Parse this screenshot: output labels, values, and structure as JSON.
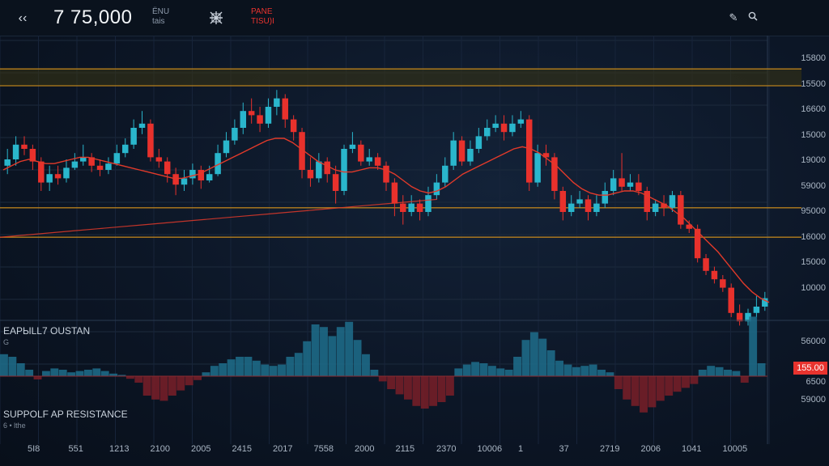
{
  "topbar": {
    "back_icon": "back-arrows-icon",
    "price": "7 75,000",
    "symbol_line1": "ЁNU",
    "symbol_line2": "tais",
    "grid_icon": "crosshair-grid-icon",
    "alert_line1": "PANE",
    "alert_line2": "TISU)I",
    "edit_icon": "draw-icon",
    "search_icon": "search-icon"
  },
  "y_axis_labels": [
    "15800",
    "15500",
    "16600",
    "15000",
    "19000",
    "59000",
    "95000",
    "16000",
    "15000",
    "10000"
  ],
  "lower_axis_labels": [
    "56000",
    "6500",
    "59000"
  ],
  "badge": "155.00",
  "x_axis_labels": [
    "5I8",
    "551",
    "1213",
    "2100",
    "2005",
    "2415",
    "2017",
    "7558",
    "2000",
    "2115",
    "2370",
    "10006",
    "1",
    "37",
    "2719",
    "2006",
    "1041",
    "10005"
  ],
  "indicator": {
    "title": "EAРЫLL7 OUSTAN",
    "sub": "G"
  },
  "support_resistance": {
    "title": "SUPPOLF AP RESISTANCE",
    "sub": "6  •  lthe"
  },
  "colors": {
    "up": "#2ab6cc",
    "down": "#e8312c",
    "level": "#c88a1c",
    "ma": "#e23a2a",
    "zone": "#3a3512"
  },
  "chart_data": {
    "type": "candlestick",
    "candles": [
      [
        0.42,
        0.45,
        0.5,
        0.38
      ],
      [
        0.45,
        0.52,
        0.56,
        0.42
      ],
      [
        0.52,
        0.5,
        0.56,
        0.47
      ],
      [
        0.5,
        0.44,
        0.52,
        0.4
      ],
      [
        0.44,
        0.34,
        0.46,
        0.3
      ],
      [
        0.34,
        0.38,
        0.42,
        0.3
      ],
      [
        0.38,
        0.36,
        0.42,
        0.33
      ],
      [
        0.36,
        0.41,
        0.45,
        0.34
      ],
      [
        0.41,
        0.44,
        0.48,
        0.4
      ],
      [
        0.44,
        0.46,
        0.52,
        0.42
      ],
      [
        0.46,
        0.42,
        0.48,
        0.39
      ],
      [
        0.42,
        0.4,
        0.45,
        0.37
      ],
      [
        0.4,
        0.43,
        0.46,
        0.38
      ],
      [
        0.43,
        0.48,
        0.52,
        0.42
      ],
      [
        0.48,
        0.52,
        0.55,
        0.46
      ],
      [
        0.52,
        0.6,
        0.64,
        0.5
      ],
      [
        0.6,
        0.62,
        0.68,
        0.57
      ],
      [
        0.62,
        0.46,
        0.64,
        0.44
      ],
      [
        0.46,
        0.44,
        0.5,
        0.41
      ],
      [
        0.44,
        0.38,
        0.46,
        0.34
      ],
      [
        0.38,
        0.33,
        0.41,
        0.28
      ],
      [
        0.33,
        0.36,
        0.4,
        0.3
      ],
      [
        0.36,
        0.4,
        0.43,
        0.33
      ],
      [
        0.4,
        0.35,
        0.42,
        0.31
      ],
      [
        0.35,
        0.38,
        0.42,
        0.34
      ],
      [
        0.38,
        0.48,
        0.52,
        0.37
      ],
      [
        0.48,
        0.54,
        0.58,
        0.46
      ],
      [
        0.54,
        0.6,
        0.64,
        0.52
      ],
      [
        0.6,
        0.68,
        0.72,
        0.57
      ],
      [
        0.68,
        0.66,
        0.74,
        0.62
      ],
      [
        0.66,
        0.62,
        0.7,
        0.58
      ],
      [
        0.62,
        0.7,
        0.74,
        0.6
      ],
      [
        0.7,
        0.74,
        0.78,
        0.66
      ],
      [
        0.74,
        0.64,
        0.76,
        0.6
      ],
      [
        0.64,
        0.58,
        0.66,
        0.54
      ],
      [
        0.58,
        0.4,
        0.6,
        0.36
      ],
      [
        0.4,
        0.36,
        0.46,
        0.32
      ],
      [
        0.36,
        0.44,
        0.48,
        0.34
      ],
      [
        0.44,
        0.38,
        0.46,
        0.34
      ],
      [
        0.38,
        0.3,
        0.42,
        0.24
      ],
      [
        0.3,
        0.5,
        0.52,
        0.28
      ],
      [
        0.5,
        0.52,
        0.58,
        0.48
      ],
      [
        0.52,
        0.44,
        0.54,
        0.42
      ],
      [
        0.44,
        0.46,
        0.5,
        0.42
      ],
      [
        0.46,
        0.42,
        0.48,
        0.4
      ],
      [
        0.42,
        0.34,
        0.44,
        0.3
      ],
      [
        0.34,
        0.24,
        0.36,
        0.18
      ],
      [
        0.24,
        0.2,
        0.28,
        0.14
      ],
      [
        0.2,
        0.24,
        0.28,
        0.18
      ],
      [
        0.24,
        0.2,
        0.26,
        0.16
      ],
      [
        0.2,
        0.28,
        0.32,
        0.18
      ],
      [
        0.28,
        0.34,
        0.38,
        0.26
      ],
      [
        0.34,
        0.42,
        0.46,
        0.32
      ],
      [
        0.42,
        0.54,
        0.58,
        0.4
      ],
      [
        0.54,
        0.44,
        0.56,
        0.42
      ],
      [
        0.44,
        0.5,
        0.54,
        0.42
      ],
      [
        0.5,
        0.56,
        0.6,
        0.48
      ],
      [
        0.56,
        0.6,
        0.64,
        0.54
      ],
      [
        0.6,
        0.62,
        0.66,
        0.58
      ],
      [
        0.62,
        0.58,
        0.66,
        0.54
      ],
      [
        0.58,
        0.62,
        0.66,
        0.56
      ],
      [
        0.62,
        0.64,
        0.68,
        0.6
      ],
      [
        0.64,
        0.34,
        0.66,
        0.3
      ],
      [
        0.34,
        0.48,
        0.52,
        0.32
      ],
      [
        0.48,
        0.46,
        0.52,
        0.42
      ],
      [
        0.46,
        0.3,
        0.48,
        0.26
      ],
      [
        0.3,
        0.2,
        0.32,
        0.16
      ],
      [
        0.2,
        0.24,
        0.28,
        0.18
      ],
      [
        0.24,
        0.26,
        0.3,
        0.22
      ],
      [
        0.26,
        0.2,
        0.28,
        0.16
      ],
      [
        0.2,
        0.24,
        0.28,
        0.18
      ],
      [
        0.24,
        0.3,
        0.34,
        0.22
      ],
      [
        0.3,
        0.36,
        0.4,
        0.28
      ],
      [
        0.36,
        0.32,
        0.48,
        0.3
      ],
      [
        0.32,
        0.34,
        0.38,
        0.3
      ],
      [
        0.34,
        0.3,
        0.38,
        0.28
      ],
      [
        0.3,
        0.2,
        0.32,
        0.16
      ],
      [
        0.2,
        0.24,
        0.26,
        0.18
      ],
      [
        0.24,
        0.22,
        0.28,
        0.18
      ],
      [
        0.22,
        0.28,
        0.3,
        0.2
      ],
      [
        0.28,
        0.14,
        0.3,
        0.12
      ],
      [
        0.14,
        0.12,
        0.16,
        0.1
      ],
      [
        0.12,
        -0.02,
        0.14,
        -0.04
      ],
      [
        -0.02,
        -0.08,
        0.0,
        -0.1
      ],
      [
        -0.08,
        -0.12,
        -0.06,
        -0.14
      ],
      [
        -0.12,
        -0.16,
        -0.1,
        -0.18
      ],
      [
        -0.16,
        -0.28,
        -0.14,
        -0.3
      ],
      [
        -0.28,
        -0.32,
        -0.24,
        -0.34
      ],
      [
        -0.32,
        -0.28,
        -0.26,
        -0.34
      ],
      [
        -0.28,
        -0.25,
        -0.2,
        -0.3
      ],
      [
        -0.25,
        -0.21,
        -0.18,
        -0.27
      ]
    ],
    "levels": [
      0.88,
      0.8,
      0.22,
      0.08
    ],
    "zone": [
      0.8,
      0.88
    ],
    "ma": [
      0.4,
      0.42,
      0.44,
      0.45,
      0.44,
      0.43,
      0.43,
      0.44,
      0.45,
      0.46,
      0.46,
      0.45,
      0.44,
      0.43,
      0.42,
      0.41,
      0.4,
      0.39,
      0.38,
      0.37,
      0.36,
      0.36,
      0.37,
      0.38,
      0.4,
      0.42,
      0.44,
      0.46,
      0.48,
      0.5,
      0.52,
      0.54,
      0.55,
      0.55,
      0.53,
      0.5,
      0.47,
      0.44,
      0.42,
      0.4,
      0.39,
      0.39,
      0.4,
      0.41,
      0.41,
      0.4,
      0.38,
      0.35,
      0.32,
      0.3,
      0.29,
      0.3,
      0.32,
      0.35,
      0.38,
      0.4,
      0.42,
      0.44,
      0.46,
      0.48,
      0.5,
      0.51,
      0.5,
      0.48,
      0.45,
      0.42,
      0.38,
      0.34,
      0.31,
      0.29,
      0.28,
      0.28,
      0.29,
      0.3,
      0.3,
      0.29,
      0.27,
      0.25,
      0.23,
      0.2,
      0.17,
      0.13,
      0.09,
      0.05,
      0.01,
      -0.04,
      -0.09,
      -0.14,
      -0.18,
      -0.21,
      -0.23
    ],
    "ma_slow": [
      0.08,
      0.09,
      0.1,
      0.11,
      0.12,
      0.13,
      0.14,
      0.15,
      0.16,
      0.17,
      0.18,
      0.19,
      0.2,
      0.21,
      0.22,
      0.23,
      0.24,
      0.25,
      0.26
    ],
    "hist": [
      0.34,
      0.3,
      0.2,
      0.1,
      -0.05,
      0.08,
      0.12,
      0.1,
      0.06,
      0.08,
      0.1,
      0.12,
      0.08,
      0.04,
      0.02,
      -0.04,
      -0.1,
      -0.3,
      -0.36,
      -0.38,
      -0.3,
      -0.22,
      -0.14,
      -0.06,
      0.06,
      0.16,
      0.2,
      0.26,
      0.3,
      0.3,
      0.24,
      0.18,
      0.16,
      0.18,
      0.3,
      0.36,
      0.54,
      0.8,
      0.76,
      0.62,
      0.76,
      0.84,
      0.56,
      0.34,
      0.1,
      -0.08,
      -0.2,
      -0.28,
      -0.36,
      -0.46,
      -0.5,
      -0.46,
      -0.4,
      -0.3,
      0.12,
      0.18,
      0.22,
      0.2,
      0.16,
      0.12,
      0.1,
      0.3,
      0.56,
      0.68,
      0.58,
      0.4,
      0.24,
      0.18,
      0.14,
      0.16,
      0.18,
      0.1,
      0.06,
      -0.2,
      -0.36,
      -0.46,
      -0.56,
      -0.48,
      -0.38,
      -0.3,
      -0.24,
      -0.18,
      -0.12,
      0.1,
      0.16,
      0.14,
      0.1,
      0.08,
      -0.1,
      0.92,
      0.2
    ]
  }
}
